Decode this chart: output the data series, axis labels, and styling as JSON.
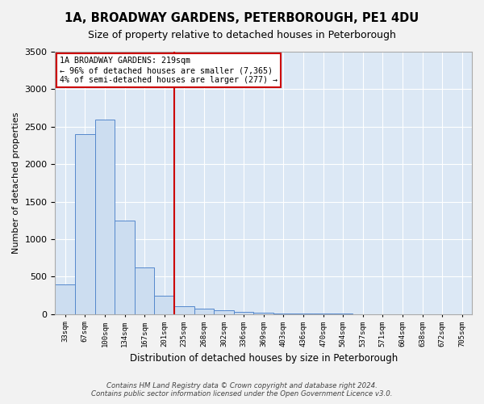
{
  "title": "1A, BROADWAY GARDENS, PETERBOROUGH, PE1 4DU",
  "subtitle": "Size of property relative to detached houses in Peterborough",
  "xlabel": "Distribution of detached houses by size in Peterborough",
  "ylabel": "Number of detached properties",
  "footer_line1": "Contains HM Land Registry data © Crown copyright and database right 2024.",
  "footer_line2": "Contains public sector information licensed under the Open Government Licence v3.0.",
  "bin_labels": [
    "33sqm",
    "67sqm",
    "100sqm",
    "134sqm",
    "167sqm",
    "201sqm",
    "235sqm",
    "268sqm",
    "302sqm",
    "336sqm",
    "369sqm",
    "403sqm",
    "436sqm",
    "470sqm",
    "504sqm",
    "537sqm",
    "571sqm",
    "604sqm",
    "638sqm",
    "672sqm",
    "705sqm"
  ],
  "bar_heights": [
    400,
    2400,
    2600,
    1250,
    620,
    250,
    100,
    70,
    50,
    30,
    15,
    10,
    5,
    5,
    3,
    2,
    1,
    1,
    0,
    0,
    0
  ],
  "bar_color": "#ccddf0",
  "bar_edgecolor": "#5588cc",
  "vline_position": 5.5,
  "vline_color": "#cc0000",
  "annotation_text": "1A BROADWAY GARDENS: 219sqm\n← 96% of detached houses are smaller (7,365)\n4% of semi-detached houses are larger (277) →",
  "annotation_box_color": "#cc0000",
  "ylim": [
    0,
    3500
  ],
  "yticks": [
    0,
    500,
    1000,
    1500,
    2000,
    2500,
    3000,
    3500
  ],
  "background_color": "#dce8f5",
  "grid_color": "#ffffff",
  "title_fontsize": 10.5,
  "subtitle_fontsize": 9,
  "fig_bg_color": "#f2f2f2"
}
